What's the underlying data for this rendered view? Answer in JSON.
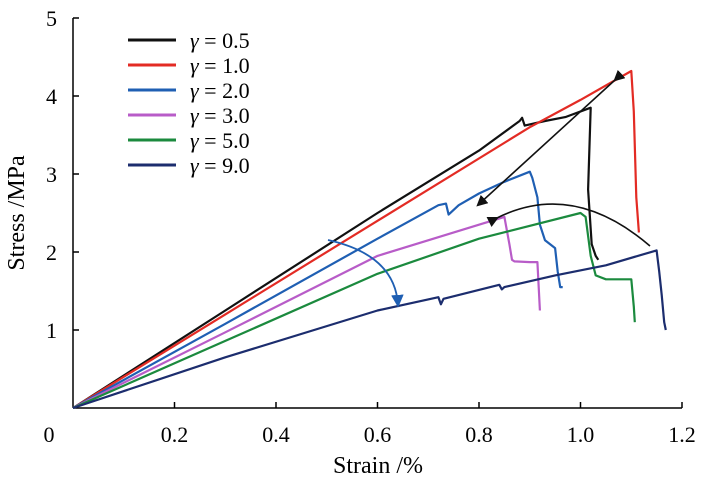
{
  "chart_data": {
    "type": "line",
    "title": "",
    "xlabel": "Strain /%",
    "ylabel": "Stress /MPa",
    "xlim": [
      0,
      1.2
    ],
    "ylim": [
      0,
      5
    ],
    "xticks": [
      0,
      0.2,
      0.4,
      0.6,
      0.8,
      1.0,
      1.2
    ],
    "xtick_labels": [
      "0",
      "0.2",
      "0.4",
      "0.6",
      "0.8",
      "1.0",
      "1.2"
    ],
    "yticks": [
      1,
      2,
      3,
      4,
      5
    ],
    "ytick_labels": [
      "1",
      "2",
      "3",
      "4",
      "5"
    ],
    "grid": false,
    "legend_position": "top-left",
    "series": [
      {
        "name": "γ = 0.5",
        "legend_symbol": "γ",
        "legend_value": "= 0.5",
        "color": "#111111",
        "points": [
          [
            0,
            0
          ],
          [
            0.3,
            1.25
          ],
          [
            0.6,
            2.5
          ],
          [
            0.8,
            3.3
          ],
          [
            0.88,
            3.68
          ],
          [
            0.885,
            3.72
          ],
          [
            0.89,
            3.62
          ],
          [
            0.93,
            3.68
          ],
          [
            0.97,
            3.73
          ],
          [
            1.02,
            3.85
          ],
          [
            1.015,
            2.8
          ],
          [
            1.022,
            2.1
          ],
          [
            1.03,
            1.95
          ],
          [
            1.035,
            1.9
          ]
        ]
      },
      {
        "name": "γ = 1.0",
        "legend_symbol": "γ",
        "legend_value": "= 1.0",
        "color": "#e32b24",
        "points": [
          [
            0,
            0
          ],
          [
            0.3,
            1.2
          ],
          [
            0.6,
            2.4
          ],
          [
            0.9,
            3.6
          ],
          [
            1.0,
            3.95
          ],
          [
            1.1,
            4.32
          ],
          [
            1.105,
            3.8
          ],
          [
            1.11,
            2.7
          ],
          [
            1.115,
            2.25
          ]
        ]
      },
      {
        "name": "γ = 2.0",
        "legend_symbol": "γ",
        "legend_value": "= 2.0",
        "color": "#1f5fb3",
        "points": [
          [
            0,
            0
          ],
          [
            0.3,
            1.08
          ],
          [
            0.6,
            2.17
          ],
          [
            0.72,
            2.6
          ],
          [
            0.735,
            2.62
          ],
          [
            0.74,
            2.48
          ],
          [
            0.76,
            2.6
          ],
          [
            0.8,
            2.75
          ],
          [
            0.85,
            2.9
          ],
          [
            0.9,
            3.03
          ],
          [
            0.905,
            2.95
          ],
          [
            0.915,
            2.7
          ],
          [
            0.92,
            2.35
          ],
          [
            0.93,
            2.15
          ],
          [
            0.95,
            2.05
          ],
          [
            0.955,
            1.75
          ],
          [
            0.96,
            1.55
          ],
          [
            0.965,
            1.55
          ]
        ]
      },
      {
        "name": "γ = 3.0",
        "legend_symbol": "γ",
        "legend_value": "= 3.0",
        "color": "#b85cc8",
        "points": [
          [
            0,
            0
          ],
          [
            0.3,
            0.97
          ],
          [
            0.6,
            1.95
          ],
          [
            0.8,
            2.35
          ],
          [
            0.85,
            2.45
          ],
          [
            0.86,
            2.1
          ],
          [
            0.865,
            1.9
          ],
          [
            0.87,
            1.88
          ],
          [
            0.9,
            1.87
          ],
          [
            0.915,
            1.87
          ],
          [
            0.918,
            1.5
          ],
          [
            0.92,
            1.25
          ]
        ]
      },
      {
        "name": "γ = 5.0",
        "legend_symbol": "γ",
        "legend_value": "= 5.0",
        "color": "#1b8a3e",
        "points": [
          [
            0,
            0
          ],
          [
            0.3,
            0.86
          ],
          [
            0.6,
            1.72
          ],
          [
            0.8,
            2.17
          ],
          [
            1.0,
            2.5
          ],
          [
            1.01,
            2.45
          ],
          [
            1.02,
            1.95
          ],
          [
            1.03,
            1.7
          ],
          [
            1.05,
            1.65
          ],
          [
            1.1,
            1.65
          ],
          [
            1.105,
            1.3
          ],
          [
            1.107,
            1.1
          ]
        ]
      },
      {
        "name": "γ = 9.0",
        "legend_symbol": "γ",
        "legend_value": "= 9.0",
        "color": "#1c2d6e",
        "points": [
          [
            0,
            0
          ],
          [
            0.3,
            0.65
          ],
          [
            0.6,
            1.25
          ],
          [
            0.72,
            1.42
          ],
          [
            0.725,
            1.33
          ],
          [
            0.73,
            1.4
          ],
          [
            0.84,
            1.58
          ],
          [
            0.845,
            1.52
          ],
          [
            0.85,
            1.55
          ],
          [
            0.95,
            1.7
          ],
          [
            1.05,
            1.83
          ],
          [
            1.15,
            2.02
          ],
          [
            1.155,
            1.75
          ],
          [
            1.16,
            1.45
          ],
          [
            1.165,
            1.1
          ],
          [
            1.168,
            1.0
          ]
        ]
      }
    ]
  }
}
